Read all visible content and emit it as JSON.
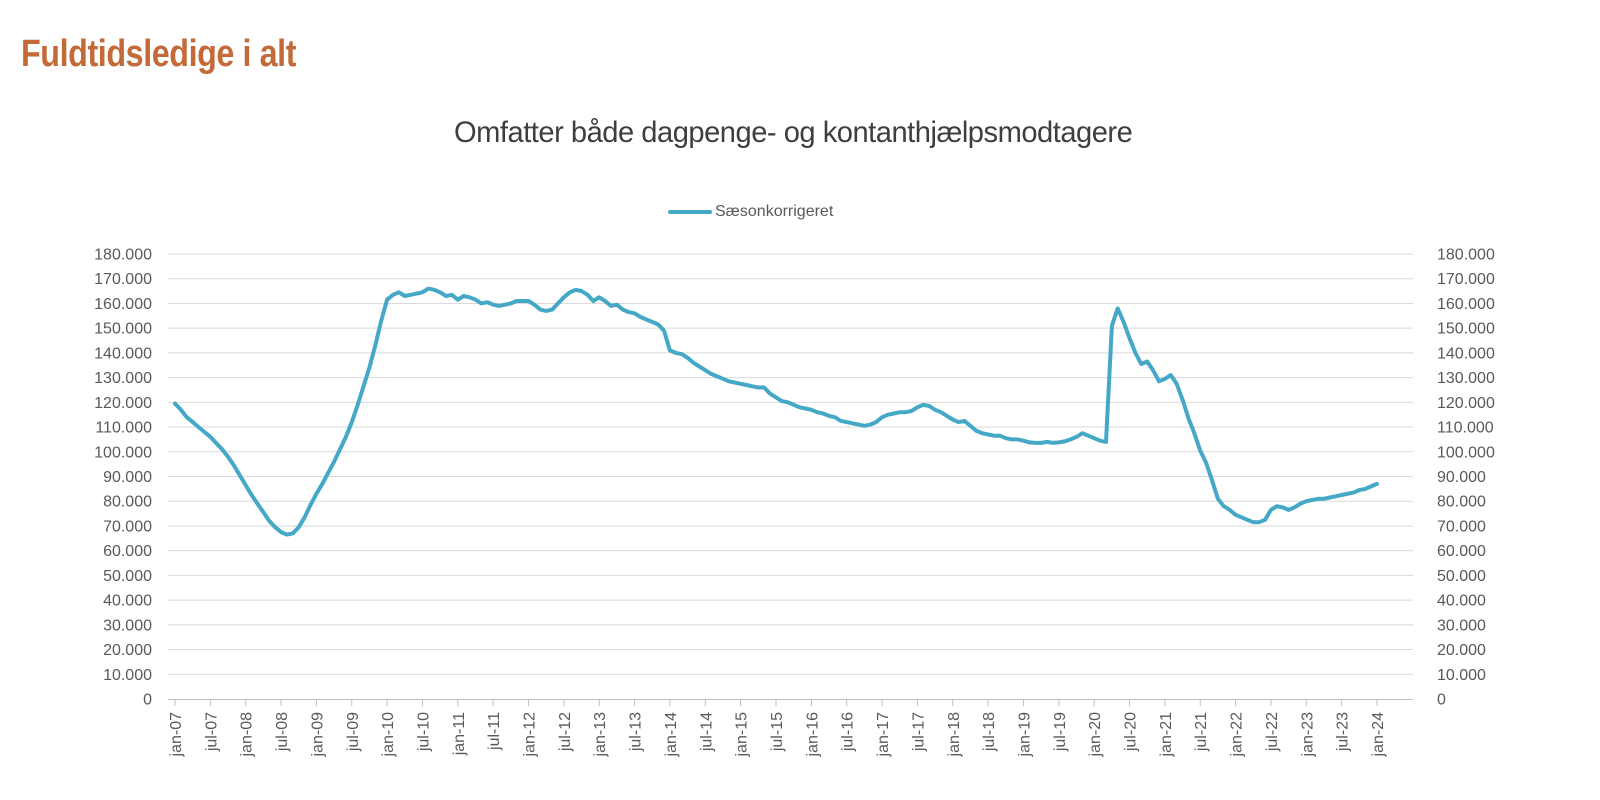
{
  "header": {
    "title": "Fuldtidsledige i alt",
    "title_color": "#c36a38"
  },
  "chart_data": {
    "type": "line",
    "title": "Omfatter både dagpenge- og kontanthjælpsmodtagere",
    "legend": {
      "label": "Sæsonkorrigeret",
      "position": "top-center"
    },
    "x_start": "jan-07",
    "x_end": "jan-24",
    "frequency": "monthly",
    "x_ticks": [
      "jan-07",
      "jul-07",
      "jan-08",
      "jul-08",
      "jan-09",
      "jul-09",
      "jan-10",
      "jul-10",
      "jan-11",
      "jul-11",
      "jan-12",
      "jul-12",
      "jan-13",
      "jul-13",
      "jan-14",
      "jul-14",
      "jan-15",
      "jul-15",
      "jan-16",
      "jul-16",
      "jan-17",
      "jul-17",
      "jan-18",
      "jul-18",
      "jan-19",
      "jul-19",
      "jan-20",
      "jul-20",
      "jan-21",
      "jul-21",
      "jan-22",
      "jul-22",
      "jan-23",
      "jul-23",
      "jan-24"
    ],
    "x_tick_every": 6,
    "y_ticks": [
      "0",
      "10.000",
      "20.000",
      "30.000",
      "40.000",
      "50.000",
      "60.000",
      "70.000",
      "80.000",
      "90.000",
      "100.000",
      "110.000",
      "120.000",
      "130.000",
      "140.000",
      "150.000",
      "160.000",
      "170.000",
      "180.000"
    ],
    "ylim": [
      0,
      180000
    ],
    "y_step": 10000,
    "grid": "horizontal",
    "dual_y_axis": true,
    "colors": {
      "line": "#44a8c6",
      "gridline": "#d9d9d9",
      "axis": "#bfbfbf",
      "tick_text": "#595959"
    },
    "series": [
      {
        "name": "Sæsonkorrigeret",
        "color": "#44a8c6",
        "values": [
          119500,
          117000,
          114000,
          112000,
          110000,
          108000,
          106000,
          103500,
          101000,
          98000,
          94500,
          90500,
          86500,
          82500,
          79000,
          75500,
          72000,
          69500,
          67500,
          66500,
          67000,
          69500,
          73500,
          78500,
          83000,
          87000,
          91500,
          96000,
          101000,
          106000,
          112000,
          119000,
          126500,
          134000,
          143000,
          153000,
          161500,
          163500,
          164500,
          163000,
          163500,
          164000,
          164500,
          166000,
          165500,
          164500,
          163000,
          163500,
          161500,
          163000,
          162500,
          161500,
          160000,
          160500,
          159500,
          159000,
          159500,
          160000,
          161000,
          161000,
          161000,
          159500,
          157500,
          157000,
          157500,
          160000,
          162500,
          164500,
          165500,
          165000,
          163500,
          161000,
          162500,
          161000,
          159000,
          159500,
          157500,
          156500,
          156000,
          154500,
          153500,
          152500,
          151500,
          149000,
          141000,
          140000,
          139500,
          138000,
          136000,
          134500,
          133000,
          131500,
          130500,
          129500,
          128500,
          128000,
          127500,
          127000,
          126500,
          126000,
          126000,
          123500,
          122000,
          120500,
          120000,
          119000,
          118000,
          117500,
          117000,
          116000,
          115500,
          114500,
          114000,
          112500,
          112000,
          111500,
          111000,
          110500,
          111000,
          112000,
          114000,
          115000,
          115500,
          116000,
          116000,
          116500,
          118000,
          119000,
          118500,
          117000,
          116000,
          114500,
          113000,
          112000,
          112500,
          110500,
          108500,
          107500,
          107000,
          106500,
          106500,
          105500,
          105000,
          105000,
          104500,
          103800,
          103600,
          103600,
          104000,
          103600,
          103800,
          104200,
          105000,
          106000,
          107500,
          106500,
          105500,
          104500,
          104000,
          151000,
          158000,
          152500,
          146000,
          140000,
          135500,
          136500,
          133000,
          128500,
          129500,
          131000,
          127500,
          121000,
          113500,
          107500,
          100500,
          95500,
          88500,
          81000,
          78000,
          76500,
          74500,
          73500,
          72500,
          71500,
          71500,
          72500,
          76500,
          78000,
          77500,
          76500,
          77500,
          79000,
          80000,
          80500,
          81000,
          81000,
          81500,
          82000,
          82500,
          83000,
          83500,
          84500,
          85000,
          86000,
          87000
        ]
      }
    ]
  }
}
